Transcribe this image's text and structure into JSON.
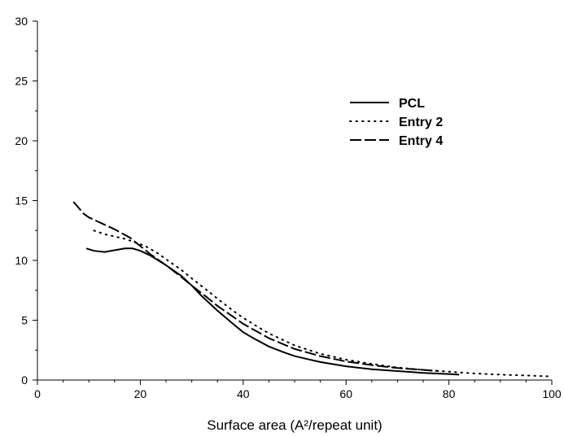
{
  "chart_data": {
    "type": "line",
    "title": "",
    "xlabel": "Surface area (A²/repeat unit)",
    "ylabel": "",
    "xlim": [
      0,
      100
    ],
    "ylim": [
      0,
      30
    ],
    "x_ticks": [
      "0",
      "20",
      "40",
      "60",
      "80",
      "100"
    ],
    "y_ticks": [
      "0",
      "5",
      "10",
      "15",
      "20",
      "25",
      "30"
    ],
    "grid": false,
    "legend_position": "top-right",
    "series": [
      {
        "name": "PCL",
        "style": "solid",
        "x": [
          9.5,
          11,
          13,
          15,
          17,
          18.5,
          20,
          22,
          25,
          28,
          30,
          32,
          35,
          38,
          40,
          42,
          45,
          48,
          50,
          55,
          60,
          65,
          70,
          75,
          80,
          82
        ],
        "y": [
          11.0,
          10.8,
          10.7,
          10.85,
          11.0,
          11.0,
          10.8,
          10.4,
          9.6,
          8.7,
          7.9,
          7.0,
          5.8,
          4.7,
          4.0,
          3.5,
          2.8,
          2.3,
          2.0,
          1.5,
          1.15,
          0.9,
          0.75,
          0.6,
          0.5,
          0.45
        ]
      },
      {
        "name": "Entry 2",
        "style": "dotted",
        "x": [
          11,
          13,
          15,
          17,
          19,
          21,
          23,
          25,
          28,
          30,
          33,
          35,
          38,
          40,
          43,
          45,
          48,
          50,
          55,
          60,
          65,
          70,
          75,
          80,
          85,
          90,
          95,
          100
        ],
        "y": [
          12.5,
          12.2,
          12.0,
          11.8,
          11.5,
          11.2,
          10.7,
          10.1,
          9.2,
          8.5,
          7.5,
          6.8,
          5.8,
          5.2,
          4.4,
          3.9,
          3.3,
          2.9,
          2.2,
          1.7,
          1.35,
          1.05,
          0.85,
          0.7,
          0.55,
          0.45,
          0.38,
          0.3
        ]
      },
      {
        "name": "Entry 4",
        "style": "dashed",
        "x": [
          7,
          8,
          9,
          10,
          12,
          15,
          18,
          20,
          22,
          25,
          28,
          30,
          33,
          35,
          38,
          40,
          45,
          50,
          55,
          60,
          65,
          70,
          75,
          78
        ],
        "y": [
          14.9,
          14.4,
          13.9,
          13.6,
          13.2,
          12.6,
          11.9,
          11.2,
          10.5,
          9.6,
          8.6,
          7.9,
          6.9,
          6.2,
          5.3,
          4.7,
          3.5,
          2.6,
          2.0,
          1.55,
          1.25,
          1.0,
          0.85,
          0.75
        ]
      }
    ]
  }
}
